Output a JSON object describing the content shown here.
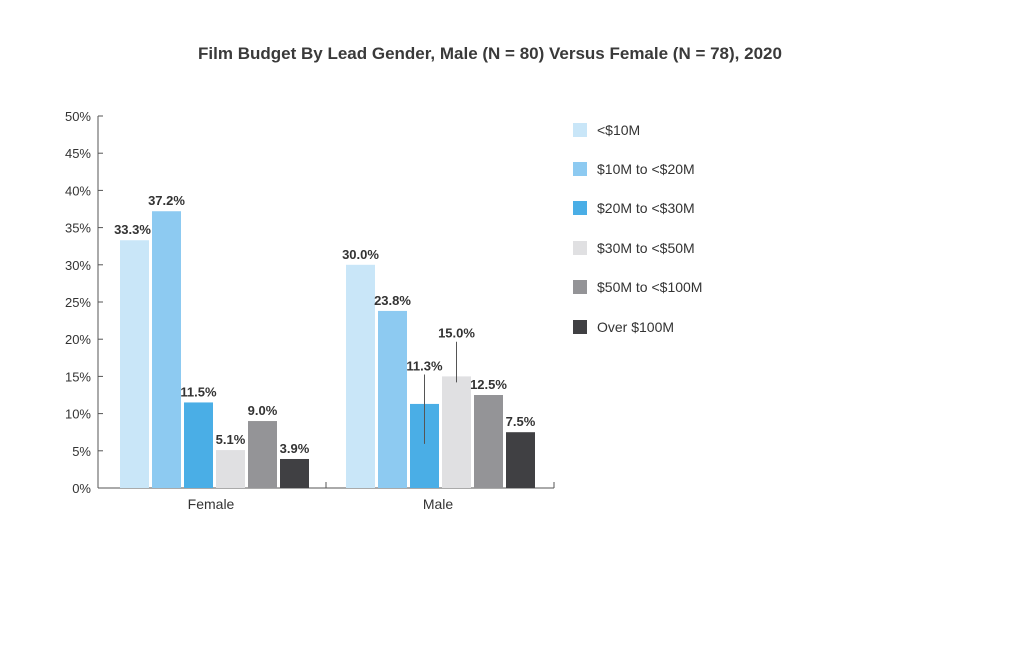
{
  "chart_data": {
    "type": "bar",
    "title": "Film Budget By Lead Gender, Male (N = 80) Versus Female (N = 78), 2020",
    "xlabel": "",
    "ylabel": "",
    "ylim": [
      0,
      50
    ],
    "yticks": [
      0,
      5,
      10,
      15,
      20,
      25,
      30,
      35,
      40,
      45,
      50
    ],
    "ytick_labels": [
      "0%",
      "5%",
      "10%",
      "15%",
      "20%",
      "25%",
      "30%",
      "35%",
      "40%",
      "45%",
      "50%"
    ],
    "categories": [
      "Female",
      "Male"
    ],
    "legend_position": "right",
    "grid": false,
    "series": [
      {
        "name": "<$10M",
        "color": "#c9e6f8",
        "values": [
          33.3,
          30.0
        ],
        "labels": [
          "33.3%",
          "30.0%"
        ]
      },
      {
        "name": "$10M to <$20M",
        "color": "#8dcaf1",
        "values": [
          37.2,
          23.8
        ],
        "labels": [
          "37.2%",
          "23.8%"
        ]
      },
      {
        "name": "$20M to <$30M",
        "color": "#4aaee6",
        "values": [
          11.5,
          11.3
        ],
        "labels": [
          "11.5%",
          "11.3%"
        ]
      },
      {
        "name": "$30M to <$50M",
        "color": "#e0e0e2",
        "values": [
          5.1,
          15.0
        ],
        "labels": [
          "5.1%",
          "15.0%"
        ]
      },
      {
        "name": "$50M to <$100M",
        "color": "#949497",
        "values": [
          9.0,
          12.5
        ],
        "labels": [
          "9.0%",
          "12.5%"
        ]
      },
      {
        "name": "Over $100M",
        "color": "#404043",
        "values": [
          3.9,
          7.5
        ],
        "labels": [
          "3.9%",
          "7.5%"
        ]
      }
    ]
  }
}
